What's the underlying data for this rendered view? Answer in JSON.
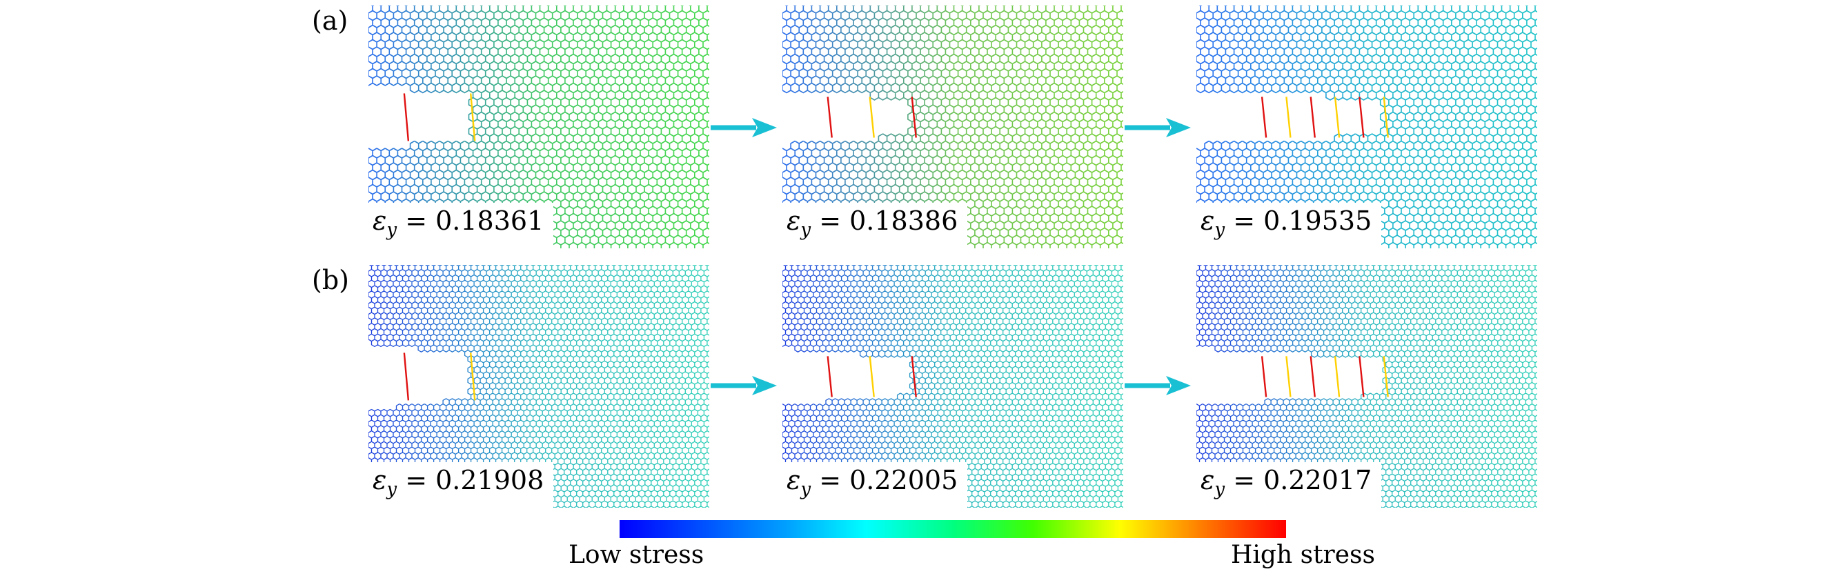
{
  "rows": [
    {
      "label": "(a)",
      "panels": [
        {
          "strain_symbol": "ε",
          "strain_sub": "y",
          "strain_value": "= 0.18361",
          "base": "#2a6cf0",
          "field": "#45d84a",
          "hole": "narrow"
        },
        {
          "strain_symbol": "ε",
          "strain_sub": "y",
          "strain_value": "= 0.18386",
          "base": "#2a6cf0",
          "field": "#7ad23a",
          "hole": "medium"
        },
        {
          "strain_symbol": "ε",
          "strain_sub": "y",
          "strain_value": "= 0.19535",
          "base": "#2a6cf0",
          "field": "#1fc3c8",
          "hole": "wide"
        }
      ]
    },
    {
      "label": "(b)",
      "panels": [
        {
          "strain_symbol": "ε",
          "strain_sub": "y",
          "strain_value": "= 0.21908",
          "base": "#1f3fe0",
          "field": "#30d0b8",
          "hole": "narrow"
        },
        {
          "strain_symbol": "ε",
          "strain_sub": "y",
          "strain_value": "= 0.22005",
          "base": "#1f3fe0",
          "field": "#30d0b8",
          "hole": "medium"
        },
        {
          "strain_symbol": "ε",
          "strain_sub": "y",
          "strain_value": "= 0.22017",
          "base": "#1f3fe0",
          "field": "#30d0b8",
          "hole": "wide"
        }
      ]
    }
  ],
  "colorbar": {
    "low_label": "Low stress",
    "high_label": "High stress",
    "colors": [
      "#0000ff",
      "#00a0ff",
      "#00ffff",
      "#00ff80",
      "#40ff00",
      "#ffff00",
      "#ff8000",
      "#ff0000"
    ]
  },
  "arrow_color": "#19bfd3"
}
